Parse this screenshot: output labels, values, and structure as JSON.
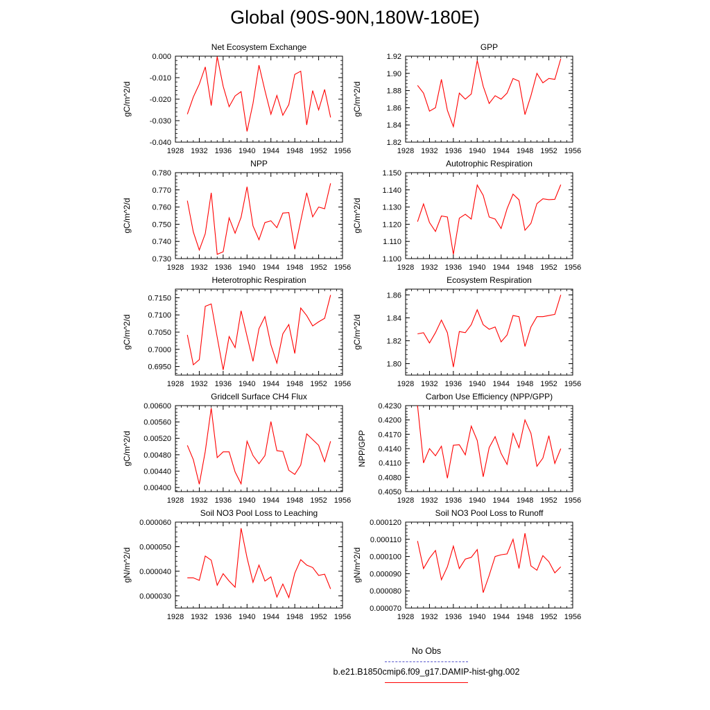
{
  "title": "Global (90S-90N,180W-180E)",
  "legend": {
    "items": [
      {
        "label": "No Obs",
        "color": "#5555cc",
        "style": "dashed"
      },
      {
        "label": "b.e21.B1850cmip6.f09_g17.DAMIP-hist-ghg.002",
        "color": "#ff0000",
        "style": "solid"
      }
    ]
  },
  "line_color": "#ff0000",
  "chart_data": [
    {
      "type": "line",
      "title": "Net Ecosystem Exchange",
      "ylabel": "gC/m^2/d",
      "x": [
        1930,
        1931,
        1932,
        1933,
        1934,
        1935,
        1936,
        1937,
        1938,
        1939,
        1940,
        1941,
        1942,
        1943,
        1944,
        1945,
        1946,
        1947,
        1948,
        1949,
        1950,
        1951,
        1952,
        1953,
        1954
      ],
      "y": [
        -0.027,
        -0.019,
        -0.013,
        -0.005,
        -0.023,
        -0.0002,
        -0.014,
        -0.0235,
        -0.0185,
        -0.0165,
        -0.035,
        -0.022,
        -0.0042,
        -0.016,
        -0.027,
        -0.0183,
        -0.0275,
        -0.0225,
        -0.0085,
        -0.007,
        -0.032,
        -0.016,
        -0.025,
        -0.0155,
        -0.0285
      ],
      "xlim": [
        1928,
        1956
      ],
      "xticks": [
        1928,
        1932,
        1936,
        1940,
        1944,
        1948,
        1952,
        1956
      ],
      "ylim": [
        -0.04,
        0.0
      ],
      "yticks": [
        -0.04,
        -0.03,
        -0.02,
        -0.01,
        0.0
      ],
      "yticklabels": [
        "-0.040",
        "-0.030",
        "-0.020",
        "-0.010",
        "0.000"
      ]
    },
    {
      "type": "line",
      "title": "GPP",
      "ylabel": "gC/m^2/d",
      "x": [
        1930,
        1931,
        1932,
        1933,
        1934,
        1935,
        1936,
        1937,
        1938,
        1939,
        1940,
        1941,
        1942,
        1943,
        1944,
        1945,
        1946,
        1947,
        1948,
        1949,
        1950,
        1951,
        1952,
        1953,
        1954
      ],
      "y": [
        1.886,
        1.877,
        1.856,
        1.86,
        1.893,
        1.857,
        1.838,
        1.877,
        1.87,
        1.876,
        1.915,
        1.885,
        1.865,
        1.874,
        1.87,
        1.877,
        1.894,
        1.891,
        1.852,
        1.874,
        1.9,
        1.889,
        1.894,
        1.893,
        1.917
      ],
      "xlim": [
        1928,
        1956
      ],
      "xticks": [
        1928,
        1932,
        1936,
        1940,
        1944,
        1948,
        1952,
        1956
      ],
      "ylim": [
        1.82,
        1.92
      ],
      "yticks": [
        1.82,
        1.84,
        1.86,
        1.88,
        1.9,
        1.92
      ],
      "yticklabels": [
        "1.82",
        "1.84",
        "1.86",
        "1.88",
        "1.90",
        "1.92"
      ]
    },
    {
      "type": "line",
      "title": "NPP",
      "ylabel": "gC/m^2/d",
      "x": [
        1930,
        1931,
        1932,
        1933,
        1934,
        1935,
        1936,
        1937,
        1938,
        1939,
        1940,
        1941,
        1942,
        1943,
        1944,
        1945,
        1946,
        1947,
        1948,
        1949,
        1950,
        1951,
        1952,
        1953,
        1954
      ],
      "y": [
        0.7637,
        0.7455,
        0.735,
        0.7445,
        0.7683,
        0.7325,
        0.734,
        0.7537,
        0.7448,
        0.754,
        0.7718,
        0.749,
        0.741,
        0.751,
        0.752,
        0.748,
        0.7565,
        0.7568,
        0.7355,
        0.752,
        0.7683,
        0.7543,
        0.76,
        0.759,
        0.7738
      ],
      "xlim": [
        1928,
        1956
      ],
      "xticks": [
        1928,
        1932,
        1936,
        1940,
        1944,
        1948,
        1952,
        1956
      ],
      "ylim": [
        0.73,
        0.78
      ],
      "yticks": [
        0.73,
        0.74,
        0.75,
        0.76,
        0.77,
        0.78
      ],
      "yticklabels": [
        "0.730",
        "0.740",
        "0.750",
        "0.760",
        "0.770",
        "0.780"
      ]
    },
    {
      "type": "line",
      "title": "Autotrophic Respiration",
      "ylabel": "gC/m^2/d",
      "x": [
        1930,
        1931,
        1932,
        1933,
        1934,
        1935,
        1936,
        1937,
        1938,
        1939,
        1940,
        1941,
        1942,
        1943,
        1944,
        1945,
        1946,
        1947,
        1948,
        1949,
        1950,
        1951,
        1952,
        1953,
        1954
      ],
      "y": [
        1.1215,
        1.1318,
        1.121,
        1.1158,
        1.1248,
        1.1242,
        1.1025,
        1.1235,
        1.1258,
        1.123,
        1.1428,
        1.1368,
        1.1242,
        1.123,
        1.1175,
        1.129,
        1.1375,
        1.1342,
        1.1165,
        1.1205,
        1.132,
        1.1348,
        1.1343,
        1.1345,
        1.143
      ],
      "xlim": [
        1928,
        1956
      ],
      "xticks": [
        1928,
        1932,
        1936,
        1940,
        1944,
        1948,
        1952,
        1956
      ],
      "ylim": [
        1.1,
        1.15
      ],
      "yticks": [
        1.1,
        1.11,
        1.12,
        1.13,
        1.14,
        1.15
      ],
      "yticklabels": [
        "1.100",
        "1.110",
        "1.120",
        "1.130",
        "1.140",
        "1.150"
      ]
    },
    {
      "type": "line",
      "title": "Heterotrophic Respiration",
      "ylabel": "gC/m^2/d",
      "x": [
        1930,
        1931,
        1932,
        1933,
        1934,
        1935,
        1936,
        1937,
        1938,
        1939,
        1940,
        1941,
        1942,
        1943,
        1944,
        1945,
        1946,
        1947,
        1948,
        1949,
        1950,
        1951,
        1952,
        1953,
        1954
      ],
      "y": [
        0.7042,
        0.6955,
        0.697,
        0.7125,
        0.7132,
        0.7035,
        0.694,
        0.7037,
        0.7005,
        0.7112,
        0.7038,
        0.6965,
        0.706,
        0.7095,
        0.7013,
        0.696,
        0.7045,
        0.7072,
        0.6988,
        0.712,
        0.7098,
        0.7068,
        0.708,
        0.709,
        0.7158
      ],
      "xlim": [
        1928,
        1956
      ],
      "xticks": [
        1928,
        1932,
        1936,
        1940,
        1944,
        1948,
        1952,
        1956
      ],
      "ylim": [
        0.6925,
        0.7175
      ],
      "yticks": [
        0.695,
        0.7,
        0.705,
        0.71,
        0.715
      ],
      "yticklabels": [
        "0.6950",
        "0.7000",
        "0.7050",
        "0.7100",
        "0.7150"
      ]
    },
    {
      "type": "line",
      "title": "Ecosystem Respiration",
      "ylabel": "gC/m^2/d",
      "x": [
        1930,
        1931,
        1932,
        1933,
        1934,
        1935,
        1936,
        1937,
        1938,
        1939,
        1940,
        1941,
        1942,
        1943,
        1944,
        1945,
        1946,
        1947,
        1948,
        1949,
        1950,
        1951,
        1952,
        1953,
        1954
      ],
      "y": [
        1.826,
        1.827,
        1.818,
        1.827,
        1.838,
        1.827,
        1.797,
        1.828,
        1.827,
        1.834,
        1.847,
        1.834,
        1.83,
        1.832,
        1.819,
        1.825,
        1.842,
        1.841,
        1.815,
        1.832,
        1.841,
        1.841,
        1.842,
        1.843,
        1.86
      ],
      "xlim": [
        1928,
        1956
      ],
      "xticks": [
        1928,
        1932,
        1936,
        1940,
        1944,
        1948,
        1952,
        1956
      ],
      "ylim": [
        1.79,
        1.865
      ],
      "yticks": [
        1.8,
        1.82,
        1.84,
        1.86
      ],
      "yticklabels": [
        "1.80",
        "1.82",
        "1.84",
        "1.86"
      ]
    },
    {
      "type": "line",
      "title": "Gridcell Surface CH4 Flux",
      "ylabel": "gC/m^2/d",
      "x": [
        1930,
        1931,
        1932,
        1933,
        1934,
        1935,
        1936,
        1937,
        1938,
        1939,
        1940,
        1941,
        1942,
        1943,
        1944,
        1945,
        1946,
        1947,
        1948,
        1949,
        1950,
        1951,
        1952,
        1953,
        1954
      ],
      "y": [
        0.00503,
        0.00468,
        0.00408,
        0.00488,
        0.00594,
        0.00473,
        0.00487,
        0.00487,
        0.00438,
        0.00409,
        0.00513,
        0.00478,
        0.00458,
        0.00478,
        0.00561,
        0.0049,
        0.00488,
        0.00442,
        0.00432,
        0.00455,
        0.00531,
        0.00517,
        0.00503,
        0.00463,
        0.00513
      ],
      "xlim": [
        1928,
        1956
      ],
      "xticks": [
        1928,
        1932,
        1936,
        1940,
        1944,
        1948,
        1952,
        1956
      ],
      "ylim": [
        0.0039,
        0.006
      ],
      "yticks": [
        0.004,
        0.0044,
        0.0048,
        0.0052,
        0.0056,
        0.006
      ],
      "yticklabels": [
        "0.00400",
        "0.00440",
        "0.00480",
        "0.00520",
        "0.00560",
        "0.00600"
      ]
    },
    {
      "type": "line",
      "title": "Carbon Use Efficiency (NPP/GPP)",
      "ylabel": "NPP/GPP",
      "x": [
        1930,
        1931,
        1932,
        1933,
        1934,
        1935,
        1936,
        1937,
        1938,
        1939,
        1940,
        1941,
        1942,
        1943,
        1944,
        1945,
        1946,
        1947,
        1948,
        1949,
        1950,
        1951,
        1952,
        1953,
        1954
      ],
      "y": [
        0.423,
        0.411,
        0.414,
        0.4125,
        0.4145,
        0.4078,
        0.4147,
        0.4148,
        0.4127,
        0.4187,
        0.4157,
        0.4081,
        0.4142,
        0.4165,
        0.413,
        0.4107,
        0.4172,
        0.4142,
        0.42,
        0.4172,
        0.4103,
        0.412,
        0.4167,
        0.4109,
        0.414
      ],
      "xlim": [
        1928,
        1956
      ],
      "xticks": [
        1928,
        1932,
        1936,
        1940,
        1944,
        1948,
        1952,
        1956
      ],
      "ylim": [
        0.405,
        0.423
      ],
      "yticks": [
        0.405,
        0.408,
        0.411,
        0.414,
        0.417,
        0.42,
        0.423
      ],
      "yticklabels": [
        "0.4050",
        "0.4080",
        "0.4110",
        "0.4140",
        "0.4170",
        "0.4200",
        "0.4230"
      ]
    },
    {
      "type": "line",
      "title": "Soil NO3 Pool Loss to Leaching",
      "ylabel": "gN/m^2/d",
      "x": [
        1930,
        1931,
        1932,
        1933,
        1934,
        1935,
        1936,
        1937,
        1938,
        1939,
        1940,
        1941,
        1942,
        1943,
        1944,
        1945,
        1946,
        1947,
        1948,
        1949,
        1950,
        1951,
        1952,
        1953,
        1954
      ],
      "y": [
        3.73e-05,
        3.73e-05,
        3.63e-05,
        4.62e-05,
        4.45e-05,
        3.43e-05,
        3.9e-05,
        3.6e-05,
        3.35e-05,
        5.75e-05,
        4.55e-05,
        3.55e-05,
        4.25e-05,
        3.6e-05,
        3.77e-05,
        2.95e-05,
        3.48e-05,
        2.93e-05,
        3.92e-05,
        4.47e-05,
        4.25e-05,
        4.15e-05,
        3.83e-05,
        3.88e-05,
        3.28e-05
      ],
      "xlim": [
        1928,
        1956
      ],
      "xticks": [
        1928,
        1932,
        1936,
        1940,
        1944,
        1948,
        1952,
        1956
      ],
      "ylim": [
        2.5e-05,
        6e-05
      ],
      "yticks": [
        3e-05,
        4e-05,
        5e-05,
        6e-05
      ],
      "yticklabels": [
        "0.000030",
        "0.000040",
        "0.000050",
        "0.000060"
      ]
    },
    {
      "type": "line",
      "title": "Soil NO3 Pool Loss to Runoff",
      "ylabel": "gN/m^2/d",
      "x": [
        1930,
        1931,
        1932,
        1933,
        1934,
        1935,
        1936,
        1937,
        1938,
        1939,
        1940,
        1941,
        1942,
        1943,
        1944,
        1945,
        1946,
        1947,
        1948,
        1949,
        1950,
        1951,
        1952,
        1953,
        1954
      ],
      "y": [
        0.000109,
        9.3e-05,
        9.9e-05,
        0.0001035,
        8.65e-05,
        9.4e-05,
        0.000106,
        9.3e-05,
        9.85e-05,
        9.95e-05,
        0.000104,
        7.9e-05,
        8.9e-05,
        0.0001,
        0.000101,
        0.0001015,
        0.00011,
        9.3e-05,
        0.0001135,
        9.45e-05,
        9.2e-05,
        0.0001005,
        9.7e-05,
        9.05e-05,
        9.4e-05
      ],
      "xlim": [
        1928,
        1956
      ],
      "xticks": [
        1928,
        1932,
        1936,
        1940,
        1944,
        1948,
        1952,
        1956
      ],
      "ylim": [
        7e-05,
        0.00012
      ],
      "yticks": [
        7e-05,
        8e-05,
        9e-05,
        0.0001,
        0.00011,
        0.00012
      ],
      "yticklabels": [
        "0.000070",
        "0.000080",
        "0.000090",
        "0.000100",
        "0.000110",
        "0.000120"
      ]
    }
  ]
}
